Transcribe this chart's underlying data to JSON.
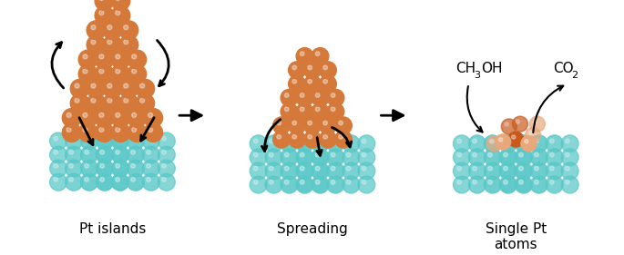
{
  "bg_color": "#ffffff",
  "teal_color": "#5bc8c8",
  "teal_light": "#a0dede",
  "orange_dark": "#c85a1e",
  "orange_mid": "#d4793a",
  "orange_light": "#e8a87c",
  "label1": "Pt islands",
  "label2": "Spreading",
  "label3": "Single Pt\natoms",
  "chem1": "CH",
  "chem1_sub": "3",
  "chem1_end": "OH",
  "chem2": "CO",
  "chem2_sub": "2",
  "label_fontsize": 11,
  "chem_fontsize": 11,
  "fig_width": 6.85,
  "fig_height": 2.81,
  "dpi": 100
}
